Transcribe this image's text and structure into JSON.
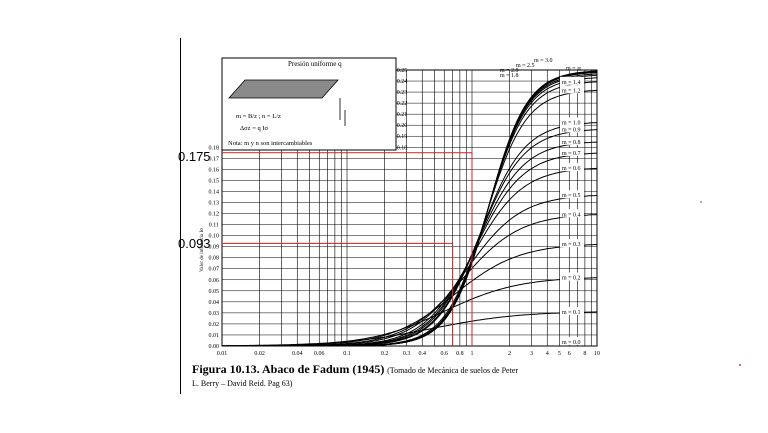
{
  "annotations": {
    "upper_value": "0.175",
    "lower_value": "0.093"
  },
  "caption": {
    "figure_label": "Figura 10.13",
    "title": ". Abaco de Fadum (1945)",
    "source_line1": "(Tomado de Mecánica de suelos de Peter",
    "source_line2": "L. Berry – David Reid. Pag 63)"
  },
  "inset": {
    "title": "Presión uniforme q",
    "formula1": "m = B/z ; n = L/z",
    "formula2": "Δσz = q Iσ",
    "note": "Nota: m y n son intercambiables"
  },
  "colors": {
    "curves": "#000000",
    "grid": "#000000",
    "annotation_lines": "#d42020",
    "stray_dot": "#e03030",
    "stray_dot_gray": "#999999"
  },
  "chart_data": {
    "type": "line",
    "xscale": "log",
    "xlim": [
      0.01,
      10
    ],
    "ylim": [
      0,
      0.25
    ],
    "grid": true,
    "x_ticks": [
      "0.01",
      "0.02",
      "0.04",
      "0.06",
      "0.1",
      "0.2",
      "0.3",
      "0.4",
      "0.6",
      "0.8",
      "1",
      "2",
      "3",
      "4",
      "5",
      "6",
      "8",
      "10"
    ],
    "y_ticks_left": [
      "0.00",
      "0.01",
      "0.02",
      "0.03",
      "0.04",
      "0.05",
      "0.06",
      "0.07",
      "0.08",
      "0.09",
      "0.10",
      "0.11",
      "0.12",
      "0.13",
      "0.14",
      "0.15",
      "0.16",
      "0.17",
      "0.18"
    ],
    "y_ticks_right": [
      "0.18",
      "0.19",
      "0.20",
      "0.21",
      "0.22",
      "0.23",
      "0.24",
      "0.25"
    ],
    "ylabel": "Valor de influencia Iσ",
    "series": [
      {
        "name": "m = ∞",
        "asymptote": 0.25
      },
      {
        "name": "m = 3.0",
        "asymptote": 0.2494
      },
      {
        "name": "m = 2.5",
        "asymptote": 0.2487
      },
      {
        "name": "m = 2.0",
        "asymptote": 0.2474
      },
      {
        "name": "m = 1.8",
        "asymptote": 0.2461
      },
      {
        "name": "m = 1.6",
        "asymptote": 0.2439
      },
      {
        "name": "m = 1.4",
        "asymptote": 0.2402
      },
      {
        "name": "m = 1.2",
        "asymptote": 0.2325
      },
      {
        "name": "m = 1.0",
        "asymptote": 0.2034
      },
      {
        "name": "m = 0.9",
        "asymptote": 0.197
      },
      {
        "name": "m = 0.8",
        "asymptote": 0.1858
      },
      {
        "name": "m = 0.7",
        "asymptote": 0.1758
      },
      {
        "name": "m = 0.6",
        "asymptote": 0.162
      },
      {
        "name": "m = 0.5",
        "asymptote": 0.1375
      },
      {
        "name": "m = 0.4",
        "asymptote": 0.1202
      },
      {
        "name": "m = 0.3",
        "asymptote": 0.0931
      },
      {
        "name": "m = 0.2",
        "asymptote": 0.0629
      },
      {
        "name": "m = 0.1",
        "asymptote": 0.0316
      },
      {
        "name": "m = 0.0",
        "asymptote": 0.0
      }
    ],
    "reference_lines": [
      {
        "y": 0.175,
        "x": 1.0
      },
      {
        "y": 0.093,
        "x": 0.7
      }
    ]
  }
}
